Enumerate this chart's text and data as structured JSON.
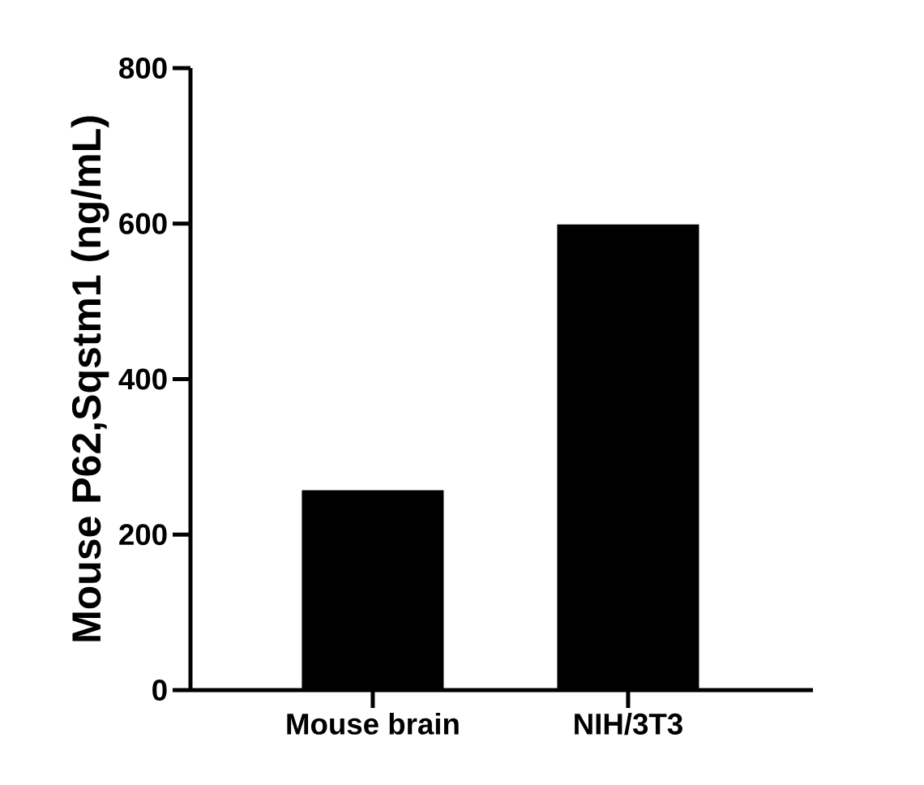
{
  "chart_data": {
    "type": "bar",
    "ylabel": "Mouse P62,Sqstm1 (ng/mL)",
    "categories": [
      "Mouse brain",
      "NIH/3T3"
    ],
    "values": [
      257,
      599
    ],
    "color": "#000000",
    "ylim": [
      0,
      800
    ],
    "yticks": [
      0,
      200,
      400,
      600,
      800
    ],
    "grid": false
  }
}
